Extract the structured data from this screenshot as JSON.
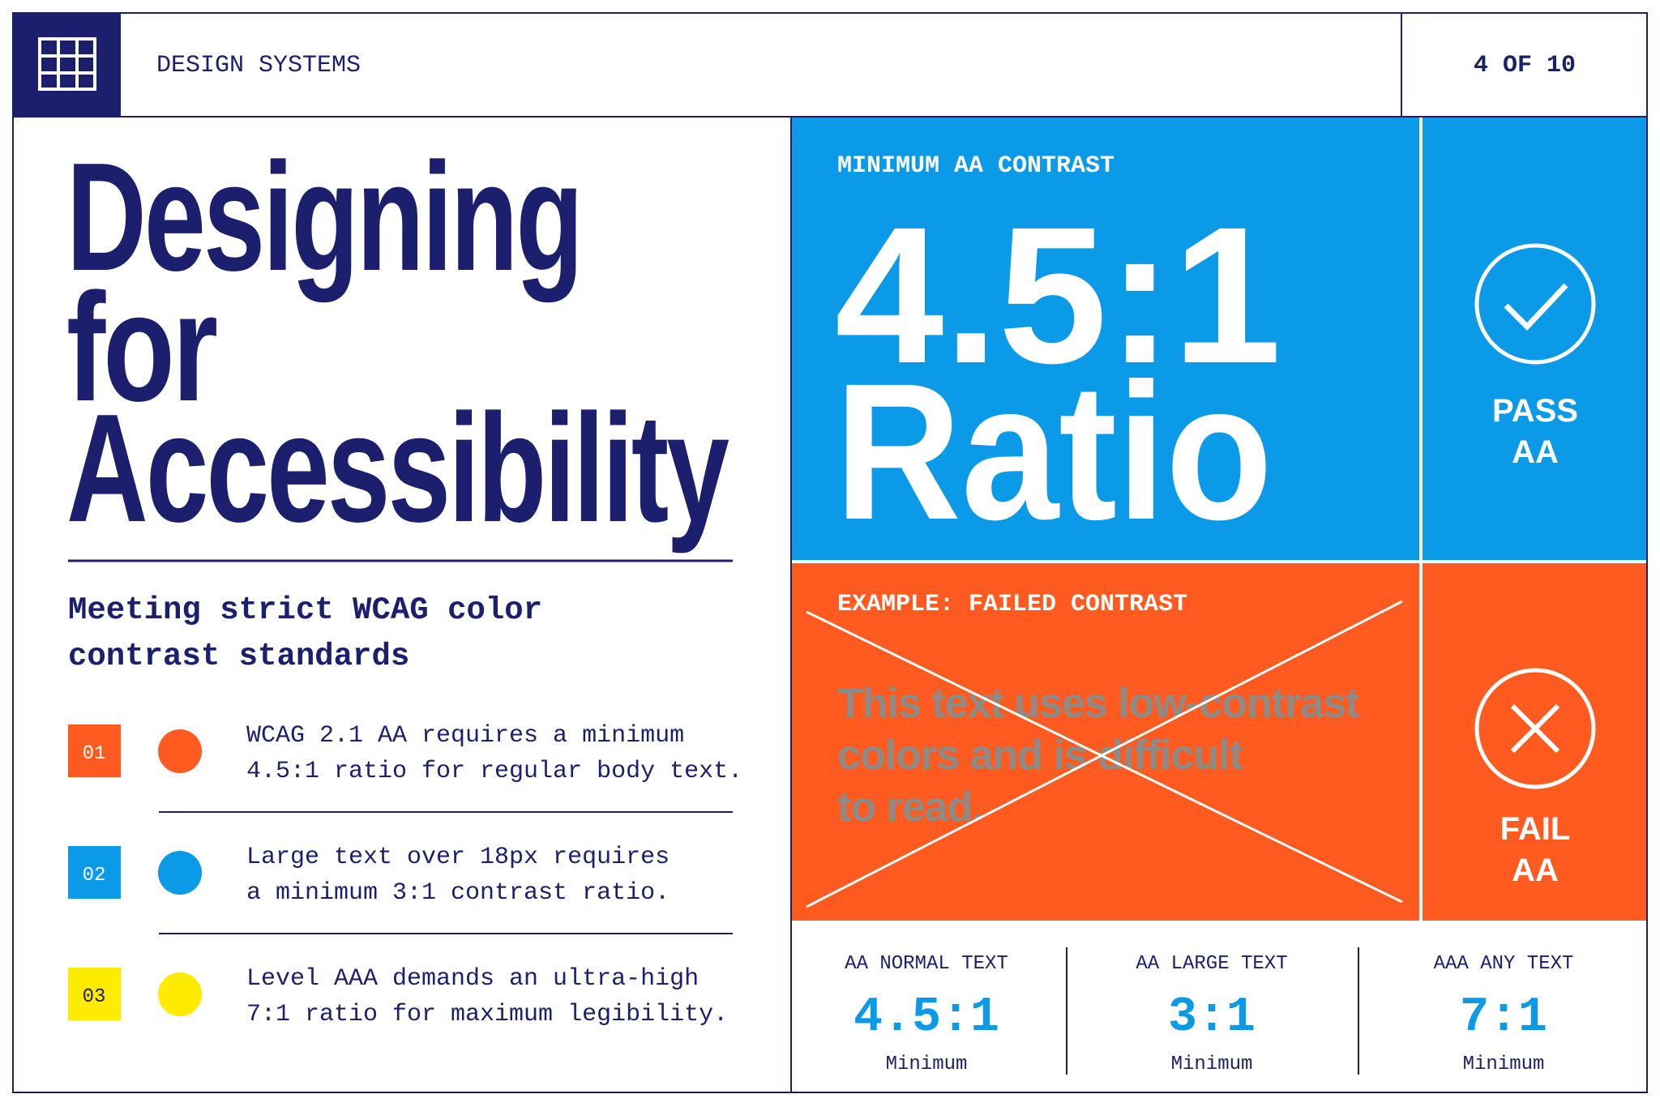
{
  "header": {
    "title": "DESIGN SYSTEMS",
    "page": "4 OF 10"
  },
  "hero": {
    "title_lines": [
      "Designing",
      "for",
      "Accessibility"
    ],
    "subtitle_lines": [
      "Meeting strict WCAG color",
      "contrast standards"
    ]
  },
  "items": [
    {
      "number": "01",
      "color": "#ff5a1f",
      "number_color": "#ffffff",
      "lines": [
        "WCAG 2.1 AA requires a minimum",
        "4.5:1 ratio for regular body text."
      ]
    },
    {
      "number": "02",
      "color": "#0a9ae8",
      "number_color": "#ffffff",
      "lines": [
        "Large text over 18px requires",
        "a minimum 3:1 contrast ratio."
      ]
    },
    {
      "number": "03",
      "color": "#ffeb00",
      "number_color": "#1b1f6e",
      "lines": [
        "Level AAA demands an ultra-high",
        "7:1 ratio for maximum legibility."
      ]
    }
  ],
  "contrast": {
    "label": "MINIMUM AA CONTRAST",
    "ratio": "4.5:1",
    "word": "Ratio",
    "badge": [
      "PASS",
      "AA"
    ]
  },
  "failed": {
    "label": "EXAMPLE: FAILED CONTRAST",
    "text_lines": [
      "This text uses low-contrast",
      "colors and is difficult",
      "to read."
    ],
    "badge": [
      "FAIL",
      "AA"
    ]
  },
  "stats": [
    {
      "label": "AA NORMAL TEXT",
      "value": "4.5:1",
      "note": "Minimum"
    },
    {
      "label": "AA LARGE TEXT",
      "value": "3:1",
      "note": "Minimum"
    },
    {
      "label": "AAA ANY TEXT",
      "value": "7:1",
      "note": "Minimum"
    }
  ]
}
